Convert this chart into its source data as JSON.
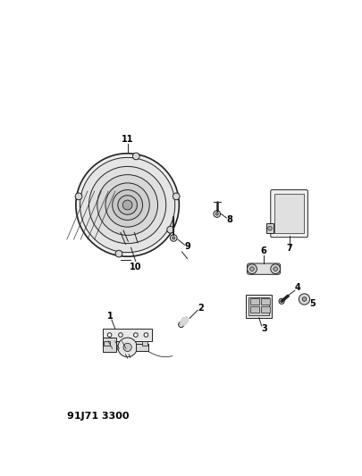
{
  "title": "91J71 3300",
  "bg_color": "#ffffff",
  "figsize": [
    4.06,
    5.33
  ],
  "dpi": 100,
  "lw": 0.7,
  "ec": "#222222",
  "fc": "#f0f0f0",
  "white": "#ffffff"
}
